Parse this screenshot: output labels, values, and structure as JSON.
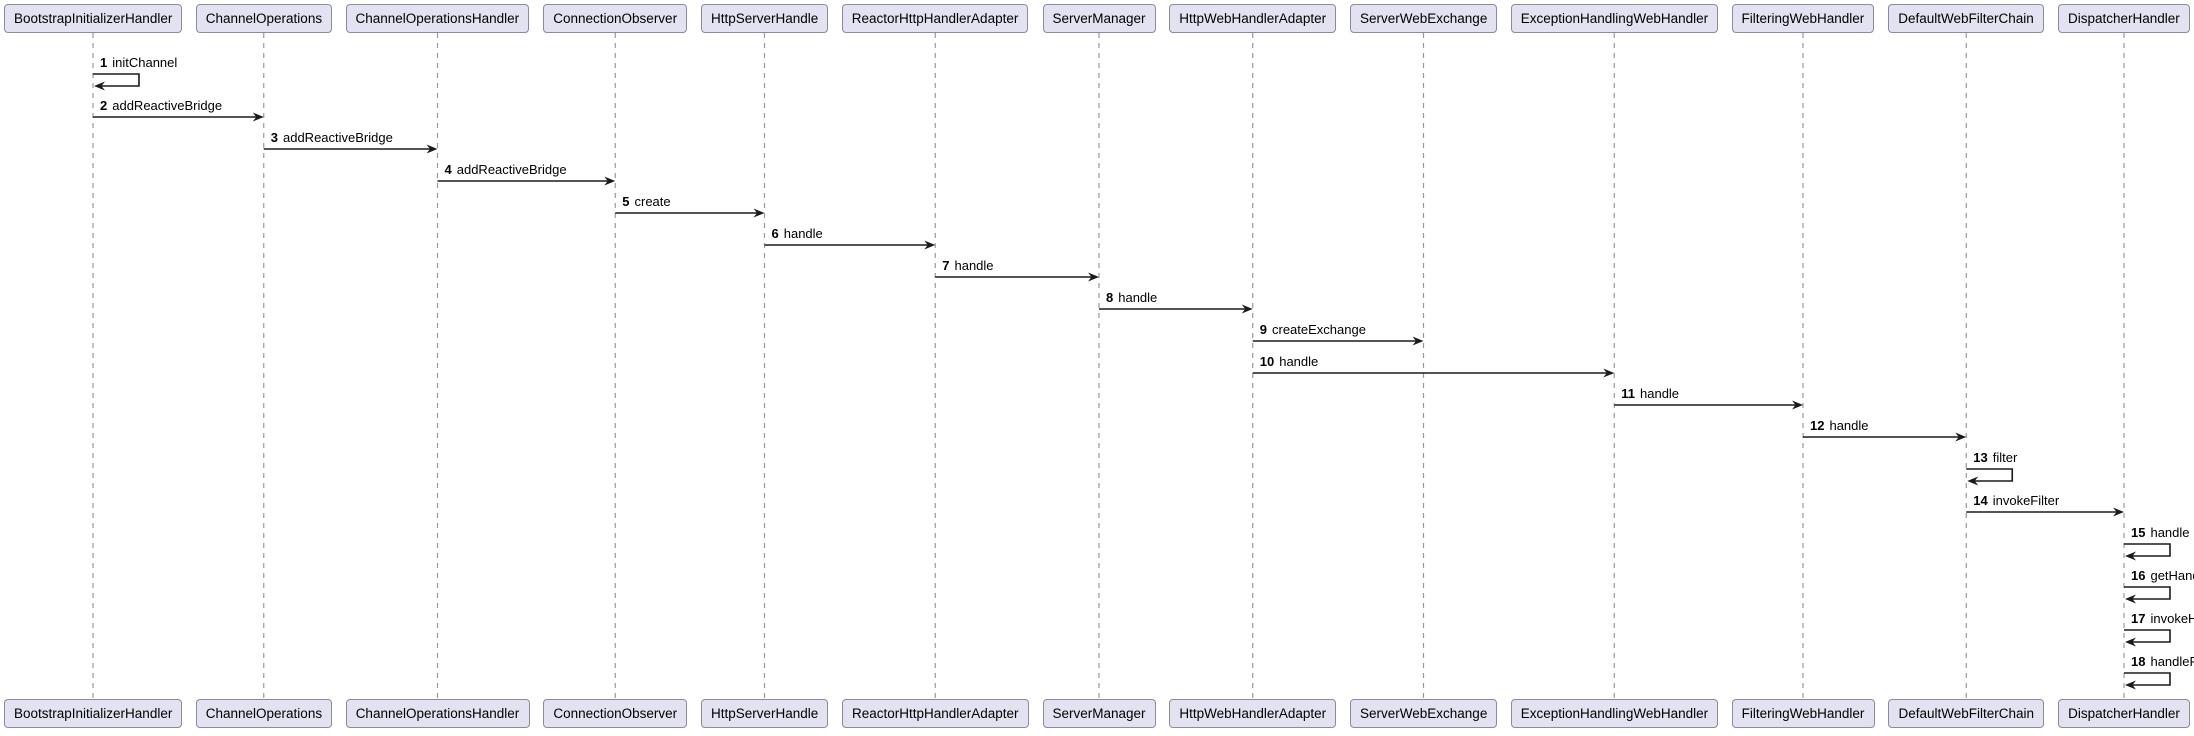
{
  "diagram": {
    "type": "uml-sequence-diagram",
    "participants": [
      {
        "label": "BootstrapInitializerHandler"
      },
      {
        "label": "ChannelOperations"
      },
      {
        "label": "ChannelOperationsHandler"
      },
      {
        "label": "ConnectionObserver"
      },
      {
        "label": "HttpServerHandle"
      },
      {
        "label": "ReactorHttpHandlerAdapter"
      },
      {
        "label": "ServerManager"
      },
      {
        "label": "HttpWebHandlerAdapter"
      },
      {
        "label": "ServerWebExchange"
      },
      {
        "label": "ExceptionHandlingWebHandler"
      },
      {
        "label": "FilteringWebHandler"
      },
      {
        "label": "DefaultWebFilterChain"
      },
      {
        "label": "DispatcherHandler"
      }
    ],
    "messages": [
      {
        "num": "1",
        "label": "initChannel",
        "from": 0,
        "to": 0,
        "self": true
      },
      {
        "num": "2",
        "label": "addReactiveBridge",
        "from": 0,
        "to": 1,
        "self": false
      },
      {
        "num": "3",
        "label": "addReactiveBridge",
        "from": 1,
        "to": 2,
        "self": false
      },
      {
        "num": "4",
        "label": "addReactiveBridge",
        "from": 2,
        "to": 3,
        "self": false
      },
      {
        "num": "5",
        "label": "create",
        "from": 3,
        "to": 4,
        "self": false
      },
      {
        "num": "6",
        "label": "handle",
        "from": 4,
        "to": 5,
        "self": false
      },
      {
        "num": "7",
        "label": "handle",
        "from": 5,
        "to": 6,
        "self": false
      },
      {
        "num": "8",
        "label": "handle",
        "from": 6,
        "to": 7,
        "self": false
      },
      {
        "num": "9",
        "label": "createExchange",
        "from": 7,
        "to": 8,
        "self": false
      },
      {
        "num": "10",
        "label": "handle",
        "from": 7,
        "to": 9,
        "self": false
      },
      {
        "num": "11",
        "label": "handle",
        "from": 9,
        "to": 10,
        "self": false
      },
      {
        "num": "12",
        "label": "handle",
        "from": 10,
        "to": 11,
        "self": false
      },
      {
        "num": "13",
        "label": "filter",
        "from": 11,
        "to": 11,
        "self": true
      },
      {
        "num": "14",
        "label": "invokeFilter",
        "from": 11,
        "to": 12,
        "self": false
      },
      {
        "num": "15",
        "label": "handle",
        "from": 12,
        "to": 12,
        "self": true
      },
      {
        "num": "16",
        "label": "getHandler",
        "from": 12,
        "to": 12,
        "self": true
      },
      {
        "num": "17",
        "label": "invokeHandler",
        "from": 12,
        "to": 12,
        "self": true
      },
      {
        "num": "18",
        "label": "handleResult",
        "from": 12,
        "to": 12,
        "self": true
      }
    ],
    "colors": {
      "background": "#ffffff",
      "participant_fill": "#E2E2F0",
      "participant_border": "#8a8aa3",
      "lifeline": "#999999",
      "message_line": "#1b1b1b",
      "text": "#000000"
    }
  }
}
